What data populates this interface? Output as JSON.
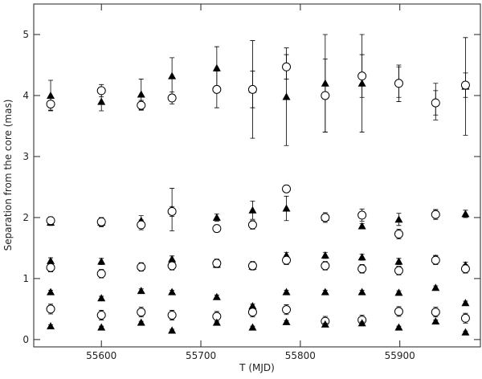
{
  "chart_data": {
    "type": "scatter",
    "x_label": "T (MJD)",
    "y_label": "Separation from the core (mas)",
    "x": [
      55549,
      55600,
      55640,
      55671,
      55716,
      55752,
      55786,
      55825,
      55862,
      55899,
      55936,
      55966
    ],
    "xlim": [
      55532,
      55981
    ],
    "xticks": [
      55600,
      55700,
      55800,
      55900
    ],
    "ylim": [
      -0.12,
      5.5
    ],
    "yticks": [
      0,
      1,
      2,
      3,
      4,
      5
    ],
    "color": "#000000",
    "series": [
      {
        "marker": "triangle",
        "values": [
          4.0,
          3.9,
          4.02,
          4.32,
          4.45,
          4.1,
          3.98,
          4.2,
          4.2,
          4.22,
          3.9,
          4.15
        ],
        "errors": [
          0.25,
          0.15,
          0.25,
          0.3,
          0.35,
          0.8,
          0.8,
          0.8,
          0.8,
          0.25,
          0.3,
          0.8
        ]
      },
      {
        "marker": "circle",
        "values": [
          3.86,
          4.08,
          3.84,
          3.96,
          4.1,
          4.1,
          4.47,
          4.0,
          4.32,
          4.2,
          3.88,
          4.17
        ],
        "errors": [
          0.1,
          0.1,
          0.08,
          0.1,
          0.3,
          0.3,
          0.2,
          0.6,
          0.35,
          0.3,
          0.2,
          0.2
        ]
      },
      {
        "marker": "triangle",
        "values": [
          1.92,
          1.92,
          1.95,
          2.13,
          2.0,
          2.12,
          2.15,
          2.0,
          1.86,
          1.97,
          2.07,
          2.06
        ],
        "errors": [
          0.05,
          0.07,
          0.08,
          0.35,
          0.06,
          0.15,
          0.2,
          0.08,
          0.04,
          0.1,
          0.06,
          0.06
        ]
      },
      {
        "marker": "circle",
        "values": [
          1.95,
          1.93,
          1.88,
          2.1,
          1.82,
          1.88,
          2.47,
          2.0,
          2.04,
          1.73,
          2.05,
          null
        ],
        "errors": [
          0.06,
          0.07,
          0.08,
          0.08,
          0.06,
          0.07,
          0.06,
          0.06,
          0.1,
          0.08,
          0.08,
          null
        ]
      },
      {
        "marker": "triangle",
        "values": [
          1.29,
          1.28,
          1.2,
          1.32,
          1.23,
          1.2,
          1.38,
          1.38,
          1.35,
          1.28,
          1.33,
          1.22
        ],
        "errors": [
          0.05,
          0.05,
          0.05,
          0.05,
          0.05,
          0.05,
          0.05,
          0.05,
          0.05,
          0.05,
          0.05,
          0.05
        ]
      },
      {
        "marker": "circle",
        "values": [
          1.18,
          1.08,
          1.19,
          1.21,
          1.25,
          1.21,
          1.3,
          1.21,
          1.16,
          1.13,
          1.3,
          1.16
        ],
        "errors": [
          0.07,
          0.07,
          0.07,
          0.07,
          0.07,
          0.07,
          0.07,
          0.07,
          0.07,
          0.07,
          0.07,
          0.07
        ]
      },
      {
        "marker": "triangle",
        "values": [
          0.78,
          0.68,
          0.8,
          0.78,
          0.7,
          0.55,
          0.78,
          0.78,
          0.78,
          0.77,
          0.85,
          0.6
        ],
        "errors": [
          0.03,
          0.03,
          0.03,
          0.03,
          0.03,
          0.03,
          0.03,
          0.03,
          0.03,
          0.03,
          0.03,
          0.03
        ]
      },
      {
        "marker": "circle",
        "values": [
          0.5,
          0.4,
          0.45,
          0.4,
          0.38,
          0.45,
          0.49,
          0.3,
          0.32,
          0.46,
          0.45,
          0.35
        ],
        "errors": [
          0.08,
          0.08,
          0.08,
          0.08,
          0.08,
          0.08,
          0.08,
          0.08,
          0.08,
          0.08,
          0.08,
          0.08
        ]
      },
      {
        "marker": "triangle",
        "values": [
          0.22,
          0.2,
          0.28,
          0.15,
          0.28,
          0.2,
          0.29,
          0.25,
          0.27,
          0.2,
          0.3,
          0.12
        ],
        "errors": [
          0.02,
          0.02,
          0.02,
          0.02,
          0.02,
          0.02,
          0.02,
          0.02,
          0.02,
          0.02,
          0.02,
          0.02
        ]
      }
    ]
  }
}
